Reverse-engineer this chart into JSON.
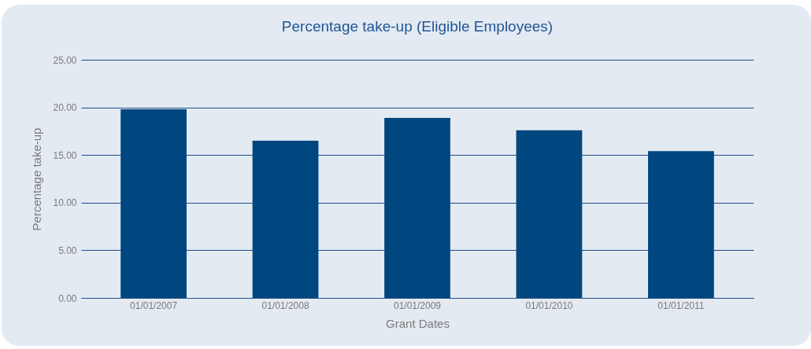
{
  "chart_data": {
    "type": "bar",
    "title": "Percentage take-up (Eligible Employees)",
    "xlabel": "Grant Dates",
    "ylabel": "Percentage take-up",
    "categories": [
      "01/01/2007",
      "01/01/2008",
      "01/01/2009",
      "01/01/2010",
      "01/01/2011"
    ],
    "values": [
      19.8,
      16.5,
      18.9,
      17.6,
      15.4
    ],
    "color": "#00467f",
    "ylim": [
      0,
      25
    ],
    "yticks": [
      {
        "value": 0,
        "label": "0.00"
      },
      {
        "value": 5,
        "label": "5.00"
      },
      {
        "value": 10,
        "label": "10.00"
      },
      {
        "value": 15,
        "label": "15.00"
      },
      {
        "value": 20,
        "label": "20.00"
      },
      {
        "value": 25,
        "label": "25.00"
      }
    ],
    "grid": "y",
    "legend": false
  }
}
